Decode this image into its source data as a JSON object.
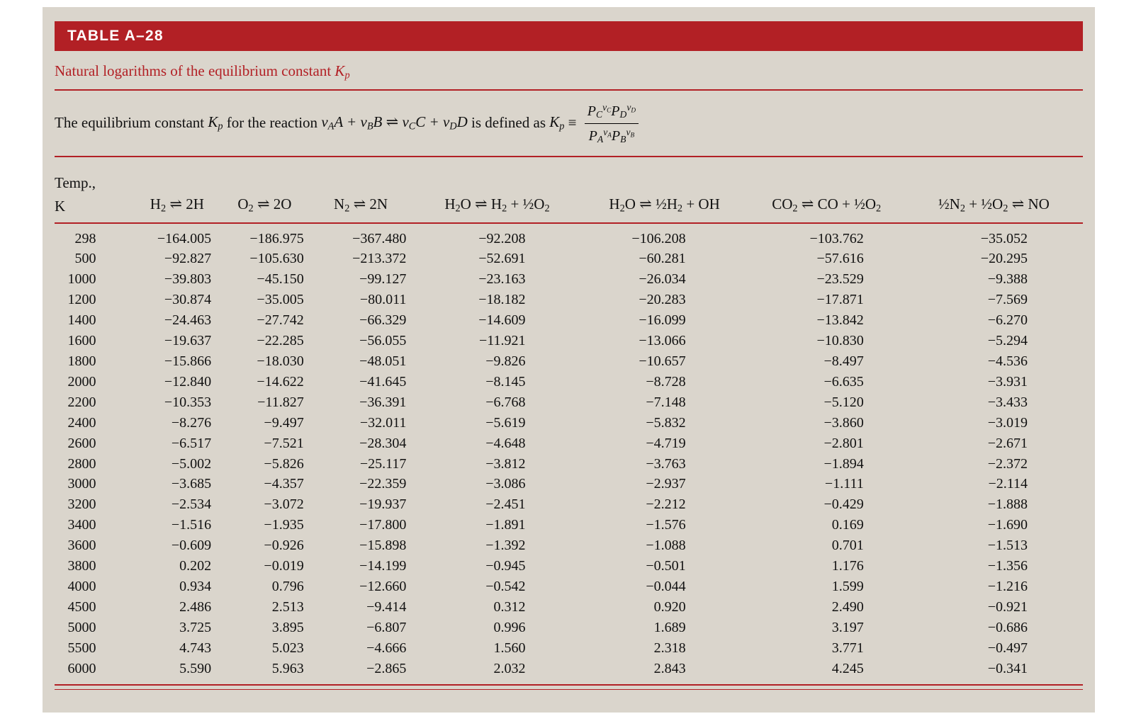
{
  "colors": {
    "accent_red": "#b22025",
    "panel_background": "#dad5cc",
    "title_text": "#ffffff"
  },
  "header_bar": {
    "title": "TABLE A–28"
  },
  "subtitle_segments": [
    {
      "t": "text",
      "s": "Natural logarithms of the equilibrium constant "
    },
    {
      "t": "math",
      "s": "K_{p}"
    }
  ],
  "definition_segments": [
    {
      "t": "text",
      "s": "The equilibrium constant "
    },
    {
      "t": "math",
      "s": "K_{p}"
    },
    {
      "t": "text",
      "s": " for the reaction "
    },
    {
      "t": "math",
      "s": "ν_{A}A + ν_{B}B ⇌ ν_{C}C + ν_{D}D"
    },
    {
      "t": "text",
      "s": " is defined as "
    },
    {
      "t": "math",
      "s": "K_{p}"
    },
    {
      "t": "text",
      "s": " ≡ "
    },
    {
      "t": "frac",
      "num": "P_{C}^{ν_{C}}P_{D}^{ν_{D}}",
      "den": "P_{A}^{ν_{A}}P_{B}^{ν_{B}}"
    }
  ],
  "table": {
    "temp_header": {
      "line1": "Temp.,",
      "line2": "K"
    },
    "column_headers": [
      "H_{2} ⇌ 2H",
      "O_{2} ⇌ 2O",
      "N_{2} ⇌ 2N",
      "H_{2}O ⇌ H_{2} + ½O_{2}",
      "H_{2}O ⇌ ½H_{2} + OH",
      "CO_{2} ⇌ CO + ½O_{2}",
      "½N_{2} + ½O_{2} ⇌ NO"
    ],
    "rows": [
      [
        "298",
        "−164.005",
        "−186.975",
        "−367.480",
        "−92.208",
        "−106.208",
        "−103.762",
        "−35.052"
      ],
      [
        "500",
        "−92.827",
        "−105.630",
        "−213.372",
        "−52.691",
        "−60.281",
        "−57.616",
        "−20.295"
      ],
      [
        "1000",
        "−39.803",
        "−45.150",
        "−99.127",
        "−23.163",
        "−26.034",
        "−23.529",
        "−9.388"
      ],
      [
        "1200",
        "−30.874",
        "−35.005",
        "−80.011",
        "−18.182",
        "−20.283",
        "−17.871",
        "−7.569"
      ],
      [
        "1400",
        "−24.463",
        "−27.742",
        "−66.329",
        "−14.609",
        "−16.099",
        "−13.842",
        "−6.270"
      ],
      [
        "1600",
        "−19.637",
        "−22.285",
        "−56.055",
        "−11.921",
        "−13.066",
        "−10.830",
        "−5.294"
      ],
      [
        "1800",
        "−15.866",
        "−18.030",
        "−48.051",
        "−9.826",
        "−10.657",
        "−8.497",
        "−4.536"
      ],
      [
        "2000",
        "−12.840",
        "−14.622",
        "−41.645",
        "−8.145",
        "−8.728",
        "−6.635",
        "−3.931"
      ],
      [
        "2200",
        "−10.353",
        "−11.827",
        "−36.391",
        "−6.768",
        "−7.148",
        "−5.120",
        "−3.433"
      ],
      [
        "2400",
        "−8.276",
        "−9.497",
        "−32.011",
        "−5.619",
        "−5.832",
        "−3.860",
        "−3.019"
      ],
      [
        "2600",
        "−6.517",
        "−7.521",
        "−28.304",
        "−4.648",
        "−4.719",
        "−2.801",
        "−2.671"
      ],
      [
        "2800",
        "−5.002",
        "−5.826",
        "−25.117",
        "−3.812",
        "−3.763",
        "−1.894",
        "−2.372"
      ],
      [
        "3000",
        "−3.685",
        "−4.357",
        "−22.359",
        "−3.086",
        "−2.937",
        "−1.111",
        "−2.114"
      ],
      [
        "3200",
        "−2.534",
        "−3.072",
        "−19.937",
        "−2.451",
        "−2.212",
        "−0.429",
        "−1.888"
      ],
      [
        "3400",
        "−1.516",
        "−1.935",
        "−17.800",
        "−1.891",
        "−1.576",
        "0.169",
        "−1.690"
      ],
      [
        "3600",
        "−0.609",
        "−0.926",
        "−15.898",
        "−1.392",
        "−1.088",
        "0.701",
        "−1.513"
      ],
      [
        "3800",
        "0.202",
        "−0.019",
        "−14.199",
        "−0.945",
        "−0.501",
        "1.176",
        "−1.356"
      ],
      [
        "4000",
        "0.934",
        "0.796",
        "−12.660",
        "−0.542",
        "−0.044",
        "1.599",
        "−1.216"
      ],
      [
        "4500",
        "2.486",
        "2.513",
        "−9.414",
        "0.312",
        "0.920",
        "2.490",
        "−0.921"
      ],
      [
        "5000",
        "3.725",
        "3.895",
        "−6.807",
        "0.996",
        "1.689",
        "3.197",
        "−0.686"
      ],
      [
        "5500",
        "4.743",
        "5.023",
        "−4.666",
        "1.560",
        "2.318",
        "3.771",
        "−0.497"
      ],
      [
        "6000",
        "5.590",
        "5.963",
        "−2.865",
        "2.032",
        "2.843",
        "4.245",
        "−0.341"
      ]
    ]
  }
}
